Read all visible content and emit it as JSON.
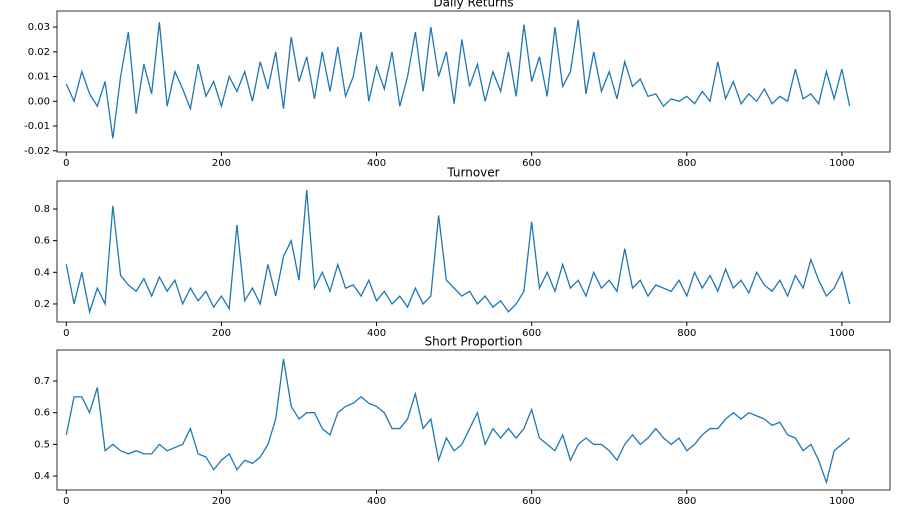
{
  "chart_data": [
    {
      "type": "line",
      "title": "Daily Returns",
      "color": "#1f77b4",
      "x": [
        0,
        10,
        20,
        30,
        40,
        50,
        60,
        70,
        80,
        90,
        100,
        110,
        120,
        130,
        140,
        150,
        160,
        170,
        180,
        190,
        200,
        210,
        220,
        230,
        240,
        250,
        260,
        270,
        280,
        290,
        300,
        310,
        320,
        330,
        340,
        350,
        360,
        370,
        380,
        390,
        400,
        410,
        420,
        430,
        440,
        450,
        460,
        470,
        480,
        490,
        500,
        510,
        520,
        530,
        540,
        550,
        560,
        570,
        580,
        590,
        600,
        610,
        620,
        630,
        640,
        650,
        660,
        670,
        680,
        690,
        700,
        710,
        720,
        730,
        740,
        750,
        760,
        770,
        780,
        790,
        800,
        810,
        820,
        830,
        840,
        850,
        860,
        870,
        880,
        890,
        900,
        910,
        920,
        930,
        940,
        950,
        960,
        970,
        980,
        990,
        1000,
        1010
      ],
      "values": [
        0.007,
        0.0,
        0.012,
        0.003,
        -0.002,
        0.008,
        -0.015,
        0.01,
        0.028,
        -0.005,
        0.015,
        0.003,
        0.032,
        -0.002,
        0.012,
        0.005,
        -0.003,
        0.015,
        0.002,
        0.008,
        -0.002,
        0.01,
        0.004,
        0.012,
        0.0,
        0.016,
        0.005,
        0.02,
        -0.003,
        0.026,
        0.008,
        0.018,
        0.001,
        0.02,
        0.004,
        0.022,
        0.002,
        0.01,
        0.028,
        0.0,
        0.014,
        0.005,
        0.02,
        -0.002,
        0.01,
        0.028,
        0.004,
        0.03,
        0.01,
        0.02,
        -0.001,
        0.025,
        0.006,
        0.015,
        0.0,
        0.012,
        0.004,
        0.02,
        0.002,
        0.031,
        0.008,
        0.018,
        0.002,
        0.03,
        0.006,
        0.012,
        0.033,
        0.003,
        0.02,
        0.004,
        0.012,
        0.001,
        0.016,
        0.006,
        0.009,
        0.002,
        0.003,
        -0.002,
        0.001,
        0.0,
        0.002,
        -0.001,
        0.004,
        0.0,
        0.016,
        0.001,
        0.008,
        -0.001,
        0.003,
        0.0,
        0.005,
        -0.001,
        0.002,
        0.0,
        0.013,
        0.001,
        0.003,
        -0.001,
        0.012,
        0.001,
        0.013,
        -0.002
      ],
      "xlim": [
        -12,
        1062
      ],
      "xticks": [
        0,
        200,
        400,
        600,
        800,
        1000
      ],
      "ylim": [
        -0.0205,
        0.0365
      ],
      "yticks": [
        -0.02,
        -0.01,
        {
          "value": 0,
          "label": "0.00"
        },
        0.01,
        0.02,
        0.03
      ]
    },
    {
      "type": "line",
      "title": "Turnover",
      "color": "#1f77b4",
      "x": [
        0,
        10,
        20,
        30,
        40,
        50,
        60,
        70,
        80,
        90,
        100,
        110,
        120,
        130,
        140,
        150,
        160,
        170,
        180,
        190,
        200,
        210,
        220,
        230,
        240,
        250,
        260,
        270,
        280,
        290,
        300,
        310,
        320,
        330,
        340,
        350,
        360,
        370,
        380,
        390,
        400,
        410,
        420,
        430,
        440,
        450,
        460,
        470,
        480,
        490,
        500,
        510,
        520,
        530,
        540,
        550,
        560,
        570,
        580,
        590,
        600,
        610,
        620,
        630,
        640,
        650,
        660,
        670,
        680,
        690,
        700,
        710,
        720,
        730,
        740,
        750,
        760,
        770,
        780,
        790,
        800,
        810,
        820,
        830,
        840,
        850,
        860,
        870,
        880,
        890,
        900,
        910,
        920,
        930,
        940,
        950,
        960,
        970,
        980,
        990,
        1000,
        1010
      ],
      "values": [
        0.45,
        0.2,
        0.4,
        0.15,
        0.3,
        0.2,
        0.82,
        0.38,
        0.32,
        0.28,
        0.36,
        0.25,
        0.37,
        0.28,
        0.35,
        0.2,
        0.3,
        0.22,
        0.28,
        0.18,
        0.25,
        0.17,
        0.7,
        0.22,
        0.3,
        0.2,
        0.45,
        0.25,
        0.5,
        0.6,
        0.35,
        0.92,
        0.3,
        0.4,
        0.28,
        0.45,
        0.3,
        0.32,
        0.25,
        0.35,
        0.22,
        0.28,
        0.2,
        0.25,
        0.18,
        0.3,
        0.2,
        0.25,
        0.76,
        0.35,
        0.3,
        0.25,
        0.28,
        0.2,
        0.25,
        0.18,
        0.22,
        0.15,
        0.2,
        0.28,
        0.72,
        0.3,
        0.4,
        0.28,
        0.45,
        0.3,
        0.35,
        0.25,
        0.4,
        0.3,
        0.35,
        0.28,
        0.55,
        0.3,
        0.35,
        0.25,
        0.32,
        0.3,
        0.28,
        0.35,
        0.25,
        0.4,
        0.3,
        0.38,
        0.28,
        0.42,
        0.3,
        0.35,
        0.27,
        0.4,
        0.32,
        0.28,
        0.35,
        0.25,
        0.38,
        0.3,
        0.48,
        0.35,
        0.25,
        0.3,
        0.4,
        0.2
      ],
      "xlim": [
        -12,
        1062
      ],
      "xticks": [
        0,
        200,
        400,
        600,
        800,
        1000
      ],
      "ylim": [
        0.086,
        0.977
      ],
      "yticks": [
        0.2,
        0.4,
        0.6,
        0.8
      ]
    },
    {
      "type": "line",
      "title": "Short Proportion",
      "color": "#1f77b4",
      "x": [
        0,
        10,
        20,
        30,
        40,
        50,
        60,
        70,
        80,
        90,
        100,
        110,
        120,
        130,
        140,
        150,
        160,
        170,
        180,
        190,
        200,
        210,
        220,
        230,
        240,
        250,
        260,
        270,
        280,
        290,
        300,
        310,
        320,
        330,
        340,
        350,
        360,
        370,
        380,
        390,
        400,
        410,
        420,
        430,
        440,
        450,
        460,
        470,
        480,
        490,
        500,
        510,
        520,
        530,
        540,
        550,
        560,
        570,
        580,
        590,
        600,
        610,
        620,
        630,
        640,
        650,
        660,
        670,
        680,
        690,
        700,
        710,
        720,
        730,
        740,
        750,
        760,
        770,
        780,
        790,
        800,
        810,
        820,
        830,
        840,
        850,
        860,
        870,
        880,
        890,
        900,
        910,
        920,
        930,
        940,
        950,
        960,
        970,
        980,
        990,
        1000,
        1010
      ],
      "values": [
        0.53,
        0.65,
        0.65,
        0.6,
        0.68,
        0.48,
        0.5,
        0.48,
        0.47,
        0.48,
        0.47,
        0.47,
        0.5,
        0.48,
        0.49,
        0.5,
        0.55,
        0.47,
        0.46,
        0.42,
        0.45,
        0.47,
        0.42,
        0.45,
        0.44,
        0.46,
        0.5,
        0.58,
        0.77,
        0.62,
        0.58,
        0.6,
        0.6,
        0.55,
        0.53,
        0.6,
        0.62,
        0.63,
        0.65,
        0.63,
        0.62,
        0.6,
        0.55,
        0.55,
        0.58,
        0.66,
        0.55,
        0.58,
        0.45,
        0.52,
        0.48,
        0.5,
        0.55,
        0.6,
        0.5,
        0.55,
        0.52,
        0.55,
        0.52,
        0.55,
        0.61,
        0.52,
        0.5,
        0.48,
        0.53,
        0.45,
        0.5,
        0.52,
        0.5,
        0.5,
        0.48,
        0.45,
        0.5,
        0.53,
        0.5,
        0.52,
        0.55,
        0.52,
        0.5,
        0.52,
        0.48,
        0.5,
        0.53,
        0.55,
        0.55,
        0.58,
        0.6,
        0.58,
        0.6,
        0.59,
        0.58,
        0.56,
        0.57,
        0.53,
        0.52,
        0.48,
        0.5,
        0.45,
        0.38,
        0.48,
        0.5,
        0.52
      ],
      "xlim": [
        -12,
        1062
      ],
      "xticks": [
        0,
        200,
        400,
        600,
        800,
        1000
      ],
      "ylim": [
        0.356,
        0.798
      ],
      "yticks": [
        0.4,
        0.5,
        0.6,
        0.7
      ]
    }
  ]
}
